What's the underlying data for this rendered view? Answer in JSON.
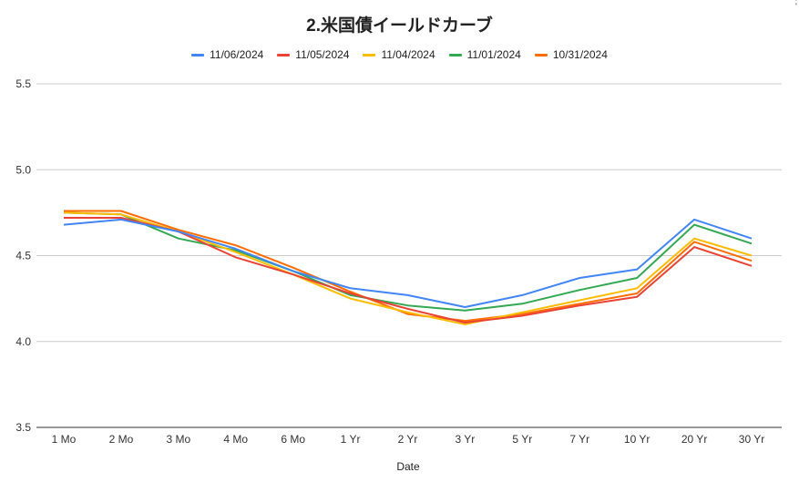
{
  "chart_data": {
    "type": "line",
    "title": "2.米国債イールドカーブ",
    "xlabel": "Date",
    "ylabel": "",
    "ylim": [
      3.5,
      5.5
    ],
    "yticks": [
      "3.5",
      "4.0",
      "4.5",
      "5.0",
      "5.5"
    ],
    "grid": true,
    "legend_position": "top",
    "categories": [
      "1 Mo",
      "2 Mo",
      "3 Mo",
      "4 Mo",
      "6 Mo",
      "1 Yr",
      "2 Yr",
      "3 Yr",
      "5 Yr",
      "7 Yr",
      "10 Yr",
      "20 Yr",
      "30 Yr"
    ],
    "series": [
      {
        "name": "11/06/2024",
        "color": "#4285f4",
        "values": [
          4.68,
          4.71,
          4.64,
          4.54,
          4.41,
          4.31,
          4.27,
          4.2,
          4.27,
          4.37,
          4.42,
          4.71,
          4.6
        ]
      },
      {
        "name": "11/05/2024",
        "color": "#ea4335",
        "values": [
          4.72,
          4.72,
          4.64,
          4.49,
          4.39,
          4.28,
          4.19,
          4.11,
          4.15,
          4.21,
          4.26,
          4.55,
          4.44
        ]
      },
      {
        "name": "11/04/2024",
        "color": "#fbbc04",
        "values": [
          4.75,
          4.74,
          4.64,
          4.52,
          4.39,
          4.25,
          4.17,
          4.1,
          4.17,
          4.24,
          4.31,
          4.6,
          4.5
        ]
      },
      {
        "name": "11/01/2024",
        "color": "#34a853",
        "values": [
          4.75,
          4.74,
          4.6,
          4.53,
          4.41,
          4.27,
          4.21,
          4.18,
          4.22,
          4.3,
          4.37,
          4.68,
          4.57
        ]
      },
      {
        "name": "10/31/2024",
        "color": "#ff6d01",
        "values": [
          4.76,
          4.76,
          4.65,
          4.56,
          4.43,
          4.29,
          4.16,
          4.12,
          4.16,
          4.22,
          4.28,
          4.58,
          4.47
        ]
      }
    ]
  }
}
